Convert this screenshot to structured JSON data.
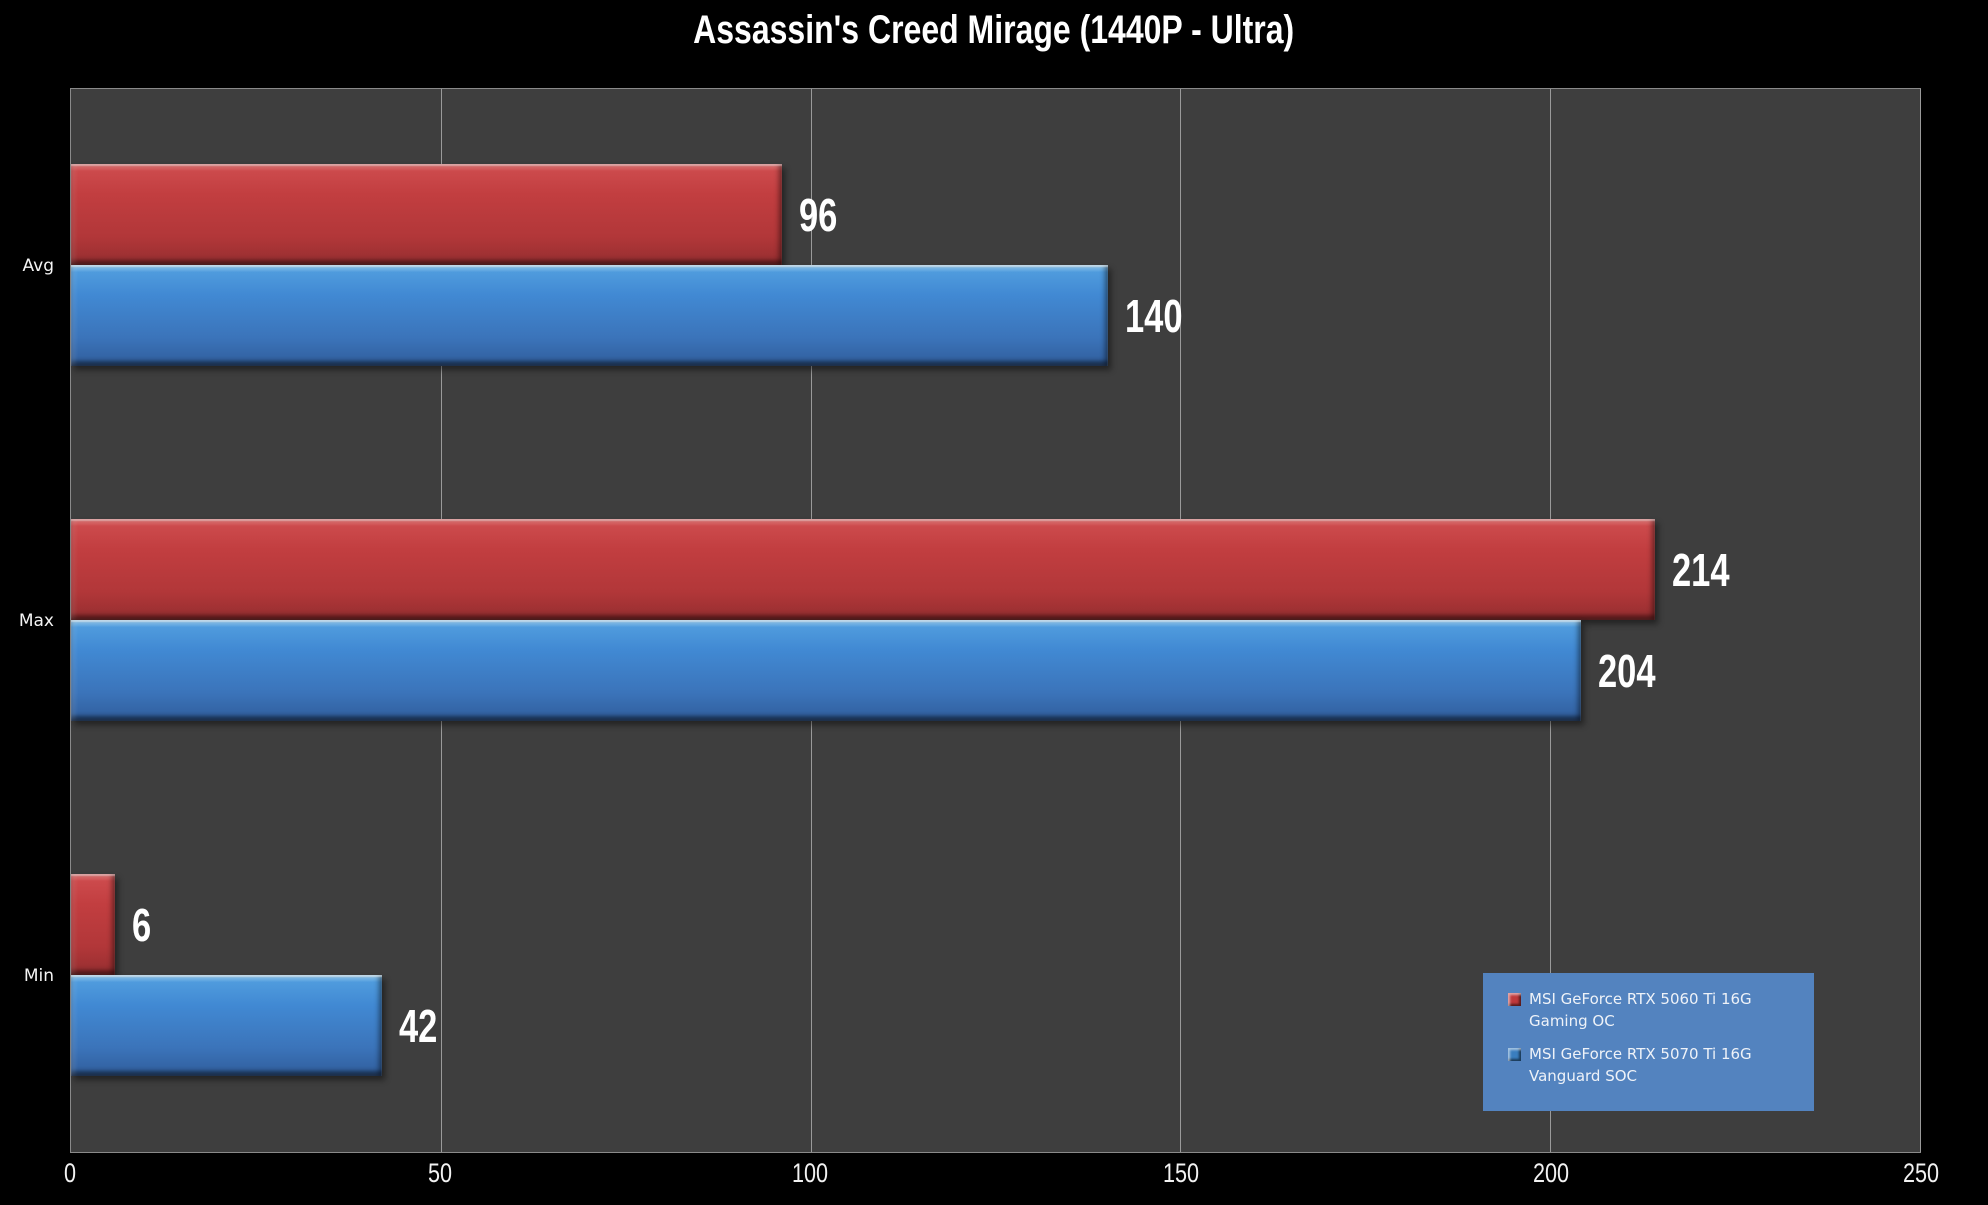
{
  "title": "Assassin's Creed Mirage (1440P - Ultra)",
  "chart_data": {
    "type": "bar",
    "orientation": "horizontal",
    "title": "Assassin's Creed Mirage (1440P - Ultra)",
    "categories": [
      "Avg",
      "Max",
      "Min"
    ],
    "series": [
      {
        "name": "MSI GeForce RTX 5060 Ti 16G Gaming OC",
        "color": "#c23e40",
        "values": [
          96,
          214,
          6
        ]
      },
      {
        "name": "MSI GeForce RTX 5070 Ti 16G Vanguard SOC",
        "color": "#4189d3",
        "values": [
          140,
          204,
          42
        ]
      }
    ],
    "xlim": [
      0,
      250
    ],
    "x_ticks": [
      0,
      50,
      100,
      150,
      200,
      250
    ],
    "grid": "vertical",
    "legend_position": "bottom-right",
    "colors": {
      "page_bg": "#000000",
      "plot_bg": "#3e3e3e",
      "gridline": "#9a9a9a",
      "text": "#ffffff",
      "legend_bg": "#5383bf"
    }
  },
  "legend": {
    "items": [
      {
        "line1": "MSI GeForce RTX 5060 Ti 16G",
        "line2": "Gaming OC",
        "marker_color": "#c0393b"
      },
      {
        "line1": "MSI GeForce RTX 5070 Ti 16G",
        "line2": "Vanguard SOC",
        "marker_color": "#3a7ebf"
      }
    ]
  }
}
